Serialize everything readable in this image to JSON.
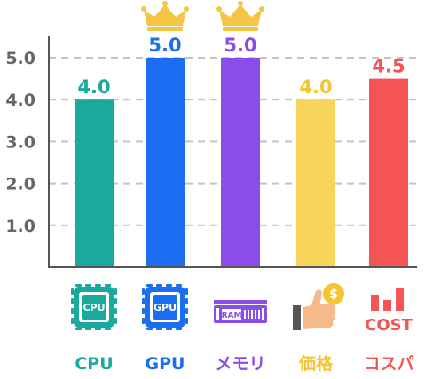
{
  "chart_data": {
    "type": "bar",
    "title": "",
    "xlabel": "",
    "ylabel": "",
    "ylim": [
      0,
      5.0
    ],
    "grid": true,
    "categories": [
      "CPU",
      "GPU",
      "メモリ",
      "価格",
      "コスパ"
    ],
    "values": [
      4.0,
      5.0,
      5.0,
      4.0,
      4.5
    ],
    "value_labels": [
      "4.0",
      "5.0",
      "5.0",
      "4.0",
      "4.5"
    ],
    "yticks": [
      "1.0",
      "2.0",
      "3.0",
      "4.0",
      "5.0"
    ],
    "colors": [
      "#1aaa9d",
      "#1c6ef0",
      "#8b4dea",
      "#f9d45a",
      "#f35454"
    ],
    "label_colors": [
      "#1aaa9d",
      "#1c6ef0",
      "#8b4dea",
      "#f4c530",
      "#f35454"
    ],
    "crowned": [
      "GPU",
      "メモリ"
    ],
    "icons": [
      "cpu-chip-icon",
      "gpu-chip-icon",
      "ram-module-icon",
      "price-thumbs-up-coin-icon",
      "cost-bars-icon"
    ],
    "icon_text": {
      "cpu": "CPU",
      "gpu": "GPU",
      "ram": "RAM",
      "coin": "$",
      "cost": "COST"
    }
  }
}
